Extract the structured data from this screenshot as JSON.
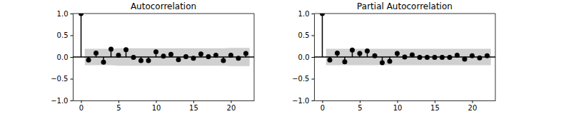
{
  "chart_data": [
    {
      "type": "stem",
      "title": "Autocorrelation",
      "color": "#000000",
      "x": [
        0,
        1,
        2,
        3,
        4,
        5,
        6,
        7,
        8,
        9,
        10,
        11,
        12,
        13,
        14,
        15,
        16,
        17,
        18,
        19,
        20,
        21,
        22
      ],
      "values": [
        1.0,
        -0.07,
        0.09,
        -0.12,
        0.18,
        0.04,
        0.17,
        -0.01,
        -0.08,
        -0.08,
        0.12,
        0.02,
        0.06,
        -0.06,
        0.01,
        -0.03,
        0.07,
        0.01,
        0.04,
        -0.08,
        0.04,
        -0.03,
        0.08
      ],
      "confidence": [
        null,
        0.19,
        0.19,
        0.19,
        0.19,
        0.2,
        0.2,
        0.2,
        0.2,
        0.2,
        0.2,
        0.2,
        0.2,
        0.2,
        0.2,
        0.2,
        0.2,
        0.2,
        0.2,
        0.2,
        0.21,
        0.21,
        0.21
      ],
      "xlim": [
        -1.1,
        23.1
      ],
      "ylim": [
        -1,
        1
      ],
      "xticks": [
        0,
        5,
        10,
        15,
        20
      ],
      "yticks": [
        {
          "value": -1,
          "label": "−1.0"
        },
        {
          "value": -0.5,
          "label": "−0.5"
        },
        {
          "value": 0,
          "label": "0.0"
        },
        {
          "value": 0.5,
          "label": "0.5"
        },
        {
          "value": 1,
          "label": "1.0"
        }
      ]
    },
    {
      "type": "stem",
      "title": "Partial Autocorrelation",
      "color": "#000000",
      "x": [
        0,
        1,
        2,
        3,
        4,
        5,
        6,
        7,
        8,
        9,
        10,
        11,
        12,
        13,
        14,
        15,
        16,
        17,
        18,
        19,
        20,
        21,
        22
      ],
      "values": [
        1.0,
        -0.07,
        0.09,
        -0.11,
        0.16,
        0.08,
        0.14,
        0.03,
        -0.13,
        -0.1,
        0.08,
        0.0,
        0.05,
        -0.01,
        -0.01,
        -0.01,
        -0.01,
        -0.01,
        0.04,
        -0.05,
        0.03,
        -0.02,
        0.03
      ],
      "confidence": [
        null,
        0.19,
        0.19,
        0.19,
        0.19,
        0.19,
        0.19,
        0.19,
        0.19,
        0.19,
        0.19,
        0.19,
        0.19,
        0.19,
        0.19,
        0.19,
        0.19,
        0.19,
        0.19,
        0.19,
        0.19,
        0.19,
        0.19
      ],
      "xlim": [
        -1.1,
        23.1
      ],
      "ylim": [
        -1,
        1
      ],
      "xticks": [
        0,
        5,
        10,
        15,
        20
      ],
      "yticks": [
        {
          "value": -1,
          "label": "−1.0"
        },
        {
          "value": -0.5,
          "label": "−0.5"
        },
        {
          "value": 0,
          "label": "0.0"
        },
        {
          "value": 0.5,
          "label": "0.5"
        },
        {
          "value": 1,
          "label": "1.0"
        }
      ]
    }
  ]
}
